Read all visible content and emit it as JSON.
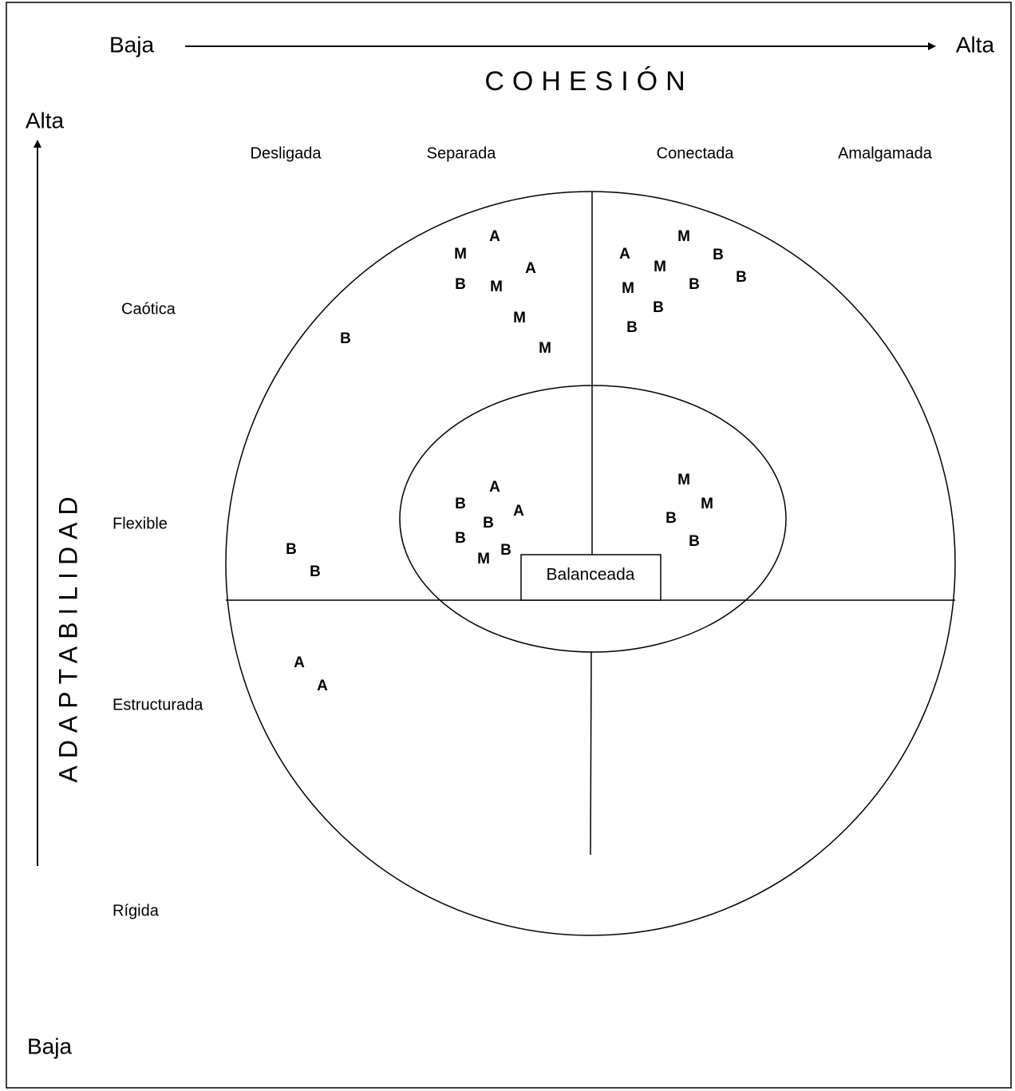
{
  "cohesion": {
    "title": "COHESIÓN",
    "low": "Baja",
    "high": "Alta",
    "levels": [
      "Desligada",
      "Separada",
      "Conectada",
      "Amalgamada"
    ]
  },
  "adaptability": {
    "title": "ADAPTABILIDAD",
    "low": "Baja",
    "high": "Alta",
    "levels": [
      "Caótica",
      "Flexible",
      "Estructurada",
      "Rígida"
    ]
  },
  "center_label": "Balanceada",
  "points": [
    "A",
    "M",
    "A",
    "B",
    "M",
    "M",
    "M",
    "B",
    "M",
    "A",
    "M",
    "B",
    "B",
    "M",
    "B",
    "B",
    "B",
    "A",
    "B",
    "A",
    "B",
    "B",
    "B",
    "M",
    "M",
    "M",
    "B",
    "B",
    "B",
    "B",
    "A",
    "A"
  ]
}
